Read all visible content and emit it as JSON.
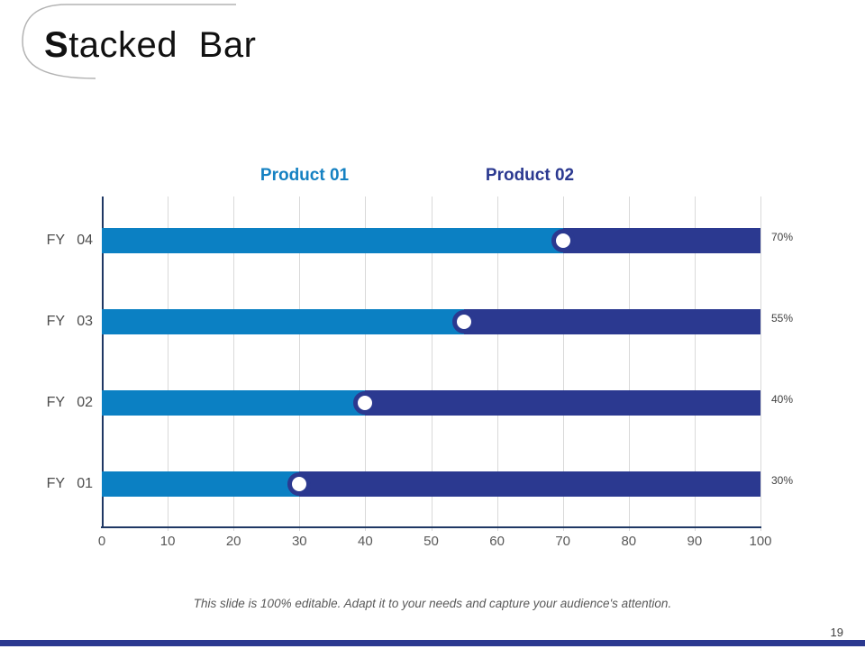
{
  "slide": {
    "title_first_letter": "S",
    "title_rest": "tacked Bar",
    "footer_text": "This slide is 100% editable. Adapt it to your needs and capture your audience's attention.",
    "page_number": "19"
  },
  "legend": {
    "items": [
      {
        "label": "Product 01",
        "color": "#1581c2"
      },
      {
        "label": "Product 02",
        "color": "#2b3990"
      }
    ]
  },
  "chart_data": {
    "type": "bar",
    "variant": "horizontal-stacked",
    "title": "Stacked Bar",
    "categories": [
      "FY 04",
      "FY 03",
      "FY 02",
      "FY 01"
    ],
    "series": [
      {
        "name": "Product 01",
        "color": "#0b80c3",
        "values": [
          70,
          55,
          40,
          30
        ]
      },
      {
        "name": "Product 02",
        "color": "#2b3990",
        "values": [
          30,
          45,
          60,
          70
        ]
      }
    ],
    "data_labels": [
      "70%",
      "55%",
      "40%",
      "30%"
    ],
    "xlim": [
      0,
      100
    ],
    "x_ticks": [
      "0",
      "10",
      "20",
      "30",
      "40",
      "50",
      "60",
      "70",
      "80",
      "90",
      "100"
    ],
    "grid": true,
    "legend_position": "top",
    "marker_style": "white circle with navy ring at segment boundary"
  },
  "colors": {
    "accent_blue": "#0b80c3",
    "accent_navy": "#2b3990",
    "axis_line": "#1f3864",
    "gridline": "#d9d9d9",
    "title_initial": "#3d4ea8",
    "text_muted": "#595959",
    "arc": "#b3b3b3"
  }
}
